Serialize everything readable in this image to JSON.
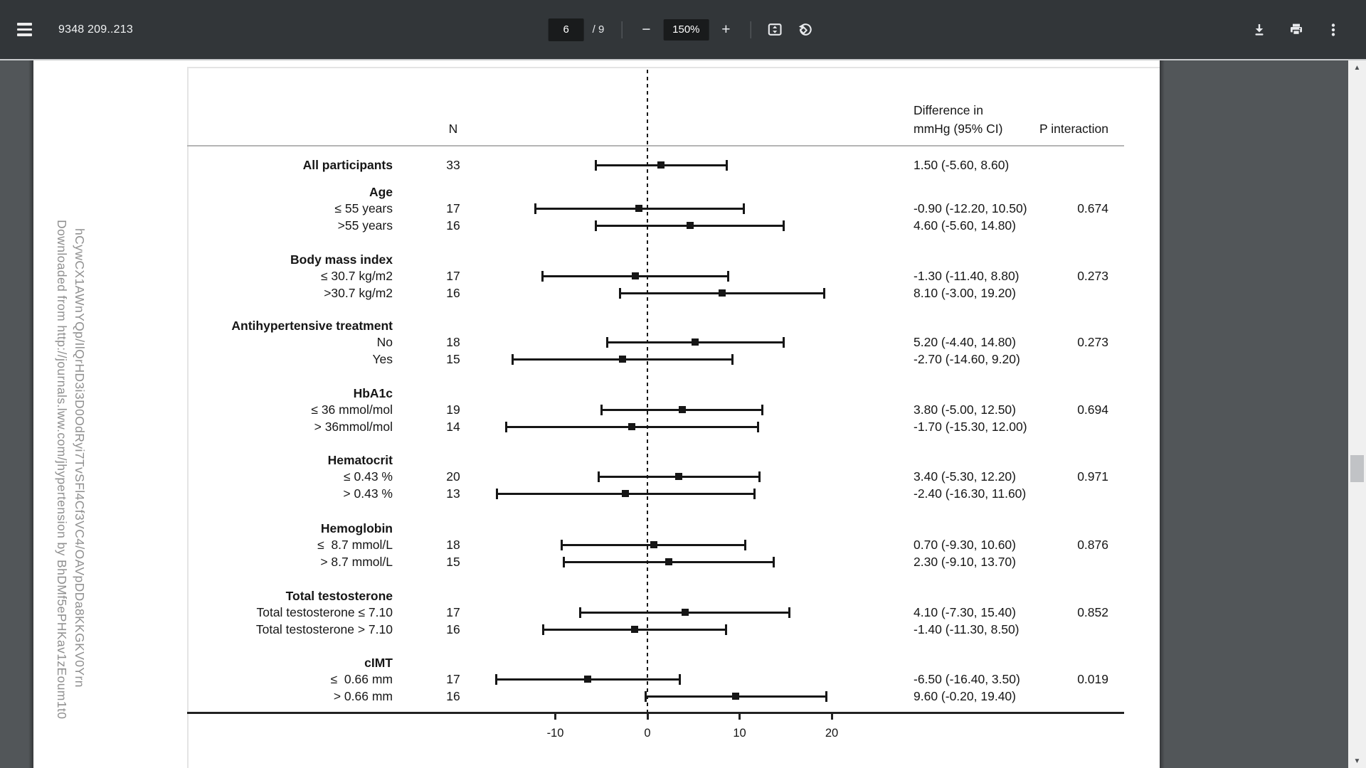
{
  "toolbar": {
    "title": "9348 209..213",
    "page_input": "6",
    "page_total": "/ 9",
    "zoom_out": "−",
    "zoom_value": "150%",
    "zoom_in": "+"
  },
  "scrollbar": {
    "up_glyph": "▲",
    "down_glyph": "▼"
  },
  "watermark": {
    "line1": "Downloaded from http://journals.lww.com/jhypertension by BhDMf5ePHKav1zEoum1t0",
    "line2": "hCywCX1AWnYQp/IlQrHD3i3D0OdRyi7TvSFl4Cf3VC4/OAVpDDa8KKGKV0Yrn"
  },
  "colors": {
    "toolbar_bg": "#323639",
    "viewer_bg": "#525659",
    "page_bg": "#ffffff",
    "figure_text": "#161616",
    "watermark_text": "#8f8f8f"
  },
  "chart_data": {
    "type": "forest",
    "title": "",
    "columns": {
      "n": "N",
      "diff_line1": "Difference in",
      "diff_line2": "mmHg (95% CI)",
      "p": "P interaction"
    },
    "axis": {
      "ticks": [
        -10,
        0,
        10,
        20
      ],
      "tick_labels": [
        "-10",
        "0",
        "10",
        "20"
      ],
      "zero_line": 0,
      "xmin": -18.5,
      "xmax": 24
    },
    "rows": [
      {
        "kind": "single",
        "label": "All participants",
        "n": "33",
        "est": 1.5,
        "lo": -5.6,
        "hi": 8.6,
        "ci": "1.50 (-5.60, 8.60)",
        "p": ""
      },
      {
        "kind": "section",
        "label": "Age",
        "p": "0.674",
        "items": [
          {
            "label": "≤ 55 years",
            "n": "17",
            "est": -0.9,
            "lo": -12.2,
            "hi": 10.5,
            "ci": "-0.90 (-12.20, 10.50)"
          },
          {
            "label": ">55 years",
            "n": "16",
            "est": 4.6,
            "lo": -5.6,
            "hi": 14.8,
            "ci": "4.60 (-5.60, 14.80)"
          }
        ]
      },
      {
        "kind": "section",
        "label": "Body mass index",
        "p": "0.273",
        "items": [
          {
            "label": "≤ 30.7 kg/m2",
            "n": "17",
            "est": -1.3,
            "lo": -11.4,
            "hi": 8.8,
            "ci": "-1.30 (-11.40, 8.80)"
          },
          {
            "label": ">30.7 kg/m2",
            "n": "16",
            "est": 8.1,
            "lo": -3.0,
            "hi": 19.2,
            "ci": "8.10 (-3.00, 19.20)"
          }
        ]
      },
      {
        "kind": "section",
        "label": "Antihypertensive treatment",
        "p": "0.273",
        "items": [
          {
            "label": "No",
            "n": "18",
            "est": 5.2,
            "lo": -4.4,
            "hi": 14.8,
            "ci": "5.20 (-4.40, 14.80)"
          },
          {
            "label": "Yes",
            "n": "15",
            "est": -2.7,
            "lo": -14.6,
            "hi": 9.2,
            "ci": "-2.70 (-14.60, 9.20)"
          }
        ]
      },
      {
        "kind": "section",
        "label": "HbA1c",
        "p": "0.694",
        "items": [
          {
            "label": "≤ 36 mmol/mol",
            "n": "19",
            "est": 3.8,
            "lo": -5.0,
            "hi": 12.5,
            "ci": "3.80 (-5.00, 12.50)"
          },
          {
            "label": "> 36mmol/mol",
            "n": "14",
            "est": -1.7,
            "lo": -15.3,
            "hi": 12.0,
            "ci": "-1.70 (-15.30, 12.00)"
          }
        ]
      },
      {
        "kind": "section",
        "label": "Hematocrit",
        "p": "0.971",
        "items": [
          {
            "label": "≤ 0.43 %",
            "n": "20",
            "est": 3.4,
            "lo": -5.3,
            "hi": 12.2,
            "ci": "3.40 (-5.30, 12.20)"
          },
          {
            "label": "> 0.43 %",
            "n": "13",
            "est": -2.4,
            "lo": -16.3,
            "hi": 11.6,
            "ci": "-2.40 (-16.30, 11.60)"
          }
        ]
      },
      {
        "kind": "section",
        "label": "Hemoglobin",
        "p": "0.876",
        "items": [
          {
            "label": "≤  8.7 mmol/L",
            "n": "18",
            "est": 0.7,
            "lo": -9.3,
            "hi": 10.6,
            "ci": "0.70 (-9.30, 10.60)"
          },
          {
            "label": "> 8.7 mmol/L",
            "n": "15",
            "est": 2.3,
            "lo": -9.1,
            "hi": 13.7,
            "ci": "2.30 (-9.10, 13.70)"
          }
        ]
      },
      {
        "kind": "section",
        "label": "Total testosterone",
        "p": "0.852",
        "items": [
          {
            "label": "Total testosterone ≤ 7.10",
            "n": "17",
            "est": 4.1,
            "lo": -7.3,
            "hi": 15.4,
            "ci": "4.10 (-7.30, 15.40)"
          },
          {
            "label": "Total testosterone > 7.10",
            "n": "16",
            "est": -1.4,
            "lo": -11.3,
            "hi": 8.5,
            "ci": "-1.40 (-11.30, 8.50)"
          }
        ]
      },
      {
        "kind": "section",
        "label": "cIMT",
        "p": "0.019",
        "items": [
          {
            "label": "≤  0.66 mm",
            "n": "17",
            "est": -6.5,
            "lo": -16.4,
            "hi": 3.5,
            "ci": "-6.50 (-16.40, 3.50)"
          },
          {
            "label": "> 0.66 mm",
            "n": "16",
            "est": 9.6,
            "lo": -0.2,
            "hi": 19.4,
            "ci": "9.60 (-0.20, 19.40)"
          }
        ]
      }
    ]
  }
}
